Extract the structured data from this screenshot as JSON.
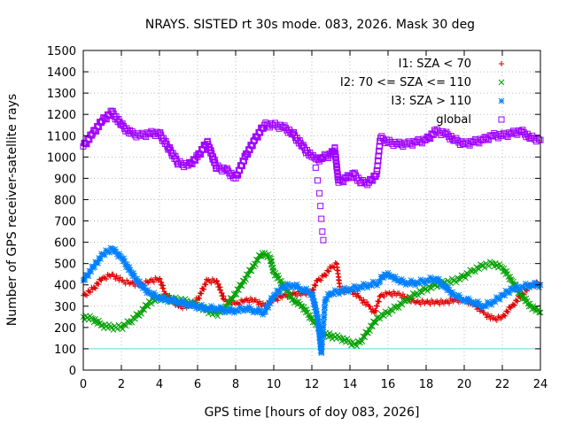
{
  "chart_data": {
    "type": "scatter",
    "title": "NRAYS. SISTED rt 30s mode. 083, 2026. Mask 30 deg",
    "xlabel": "GPS time [hours of doy 083, 2026]",
    "ylabel": "Number of GPS receiver-satellite rays",
    "xlim": [
      0,
      24
    ],
    "ylim": [
      0,
      1500
    ],
    "x_ticks": [
      "0",
      "2",
      "4",
      "6",
      "8",
      "10",
      "12",
      "14",
      "16",
      "18",
      "20",
      "22",
      "24"
    ],
    "y_ticks": [
      "0",
      "100",
      "200",
      "300",
      "400",
      "500",
      "600",
      "700",
      "800",
      "900",
      "1000",
      "1100",
      "1200",
      "1300",
      "1400",
      "1500"
    ],
    "reference_line": {
      "y": 100,
      "color": "#66d9e0"
    },
    "legend_position": "top-right",
    "series": [
      {
        "name": "I1: SZA < 70",
        "marker": "+",
        "color": "#e00000",
        "points": [
          [
            0,
            350
          ],
          [
            0.5,
            380
          ],
          [
            1,
            430
          ],
          [
            1.5,
            450
          ],
          [
            2,
            420
          ],
          [
            2.5,
            410
          ],
          [
            3,
            400
          ],
          [
            3.5,
            420
          ],
          [
            4,
            430
          ],
          [
            4.3,
            360
          ],
          [
            4.7,
            330
          ],
          [
            5,
            300
          ],
          [
            5.5,
            300
          ],
          [
            6,
            330
          ],
          [
            6.5,
            420
          ],
          [
            7,
            420
          ],
          [
            7.4,
            330
          ],
          [
            8,
            310
          ],
          [
            8.5,
            330
          ],
          [
            9,
            330
          ],
          [
            9.5,
            300
          ],
          [
            10,
            330
          ],
          [
            10.5,
            350
          ],
          [
            11,
            360
          ],
          [
            11.5,
            360
          ],
          [
            12,
            370
          ],
          [
            12.3,
            420
          ],
          [
            12.6,
            440
          ],
          [
            13,
            480
          ],
          [
            13.3,
            500
          ],
          [
            13.5,
            370
          ],
          [
            14,
            380
          ],
          [
            14.5,
            340
          ],
          [
            15,
            300
          ],
          [
            15.3,
            270
          ],
          [
            15.6,
            350
          ],
          [
            16,
            360
          ],
          [
            16.5,
            360
          ],
          [
            17,
            340
          ],
          [
            17.5,
            320
          ],
          [
            18,
            320
          ],
          [
            18.5,
            320
          ],
          [
            19,
            320
          ],
          [
            19.5,
            330
          ],
          [
            20,
            330
          ],
          [
            20.5,
            310
          ],
          [
            21,
            270
          ],
          [
            21.5,
            240
          ],
          [
            22,
            250
          ],
          [
            22.5,
            300
          ],
          [
            23,
            350
          ],
          [
            23.5,
            400
          ],
          [
            24,
            410
          ]
        ]
      },
      {
        "name": "I2: 70 <= SZA <= 110",
        "marker": "x",
        "color": "#00a000",
        "points": [
          [
            0,
            250
          ],
          [
            0.5,
            240
          ],
          [
            1,
            210
          ],
          [
            1.5,
            200
          ],
          [
            2,
            200
          ],
          [
            2.5,
            230
          ],
          [
            3,
            270
          ],
          [
            3.5,
            320
          ],
          [
            4,
            340
          ],
          [
            4.5,
            330
          ],
          [
            5,
            330
          ],
          [
            5.5,
            320
          ],
          [
            6,
            300
          ],
          [
            6.5,
            280
          ],
          [
            7,
            260
          ],
          [
            7.5,
            300
          ],
          [
            8,
            360
          ],
          [
            8.5,
            430
          ],
          [
            9,
            500
          ],
          [
            9.4,
            550
          ],
          [
            9.8,
            530
          ],
          [
            10,
            460
          ],
          [
            10.5,
            400
          ],
          [
            11,
            330
          ],
          [
            11.5,
            300
          ],
          [
            12,
            240
          ],
          [
            12.3,
            210
          ],
          [
            12.6,
            170
          ],
          [
            13,
            160
          ],
          [
            13.5,
            150
          ],
          [
            14,
            130
          ],
          [
            14.3,
            120
          ],
          [
            14.6,
            140
          ],
          [
            15,
            190
          ],
          [
            15.5,
            250
          ],
          [
            16,
            270
          ],
          [
            16.5,
            300
          ],
          [
            17,
            330
          ],
          [
            17.5,
            360
          ],
          [
            18,
            380
          ],
          [
            18.5,
            400
          ],
          [
            19,
            410
          ],
          [
            19.5,
            420
          ],
          [
            20,
            440
          ],
          [
            20.5,
            470
          ],
          [
            21,
            490
          ],
          [
            21.5,
            500
          ],
          [
            22,
            480
          ],
          [
            22.5,
            420
          ],
          [
            23,
            350
          ],
          [
            23.5,
            300
          ],
          [
            24,
            270
          ]
        ]
      },
      {
        "name": "I3: SZA > 110",
        "marker": "*",
        "color": "#0080ff",
        "points": [
          [
            0,
            420
          ],
          [
            0.5,
            480
          ],
          [
            1,
            540
          ],
          [
            1.5,
            570
          ],
          [
            2,
            530
          ],
          [
            2.5,
            460
          ],
          [
            3,
            400
          ],
          [
            3.5,
            360
          ],
          [
            4,
            340
          ],
          [
            4.5,
            330
          ],
          [
            5,
            320
          ],
          [
            5.5,
            310
          ],
          [
            6,
            300
          ],
          [
            6.5,
            290
          ],
          [
            7,
            290
          ],
          [
            7.5,
            280
          ],
          [
            8,
            280
          ],
          [
            8.5,
            290
          ],
          [
            9,
            280
          ],
          [
            9.5,
            270
          ],
          [
            10,
            350
          ],
          [
            10.5,
            390
          ],
          [
            11,
            400
          ],
          [
            11.5,
            380
          ],
          [
            12,
            360
          ],
          [
            12.3,
            250
          ],
          [
            12.5,
            80
          ],
          [
            12.7,
            330
          ],
          [
            13,
            360
          ],
          [
            13.5,
            370
          ],
          [
            14,
            380
          ],
          [
            14.5,
            390
          ],
          [
            15,
            400
          ],
          [
            15.5,
            410
          ],
          [
            15.8,
            450
          ],
          [
            16.2,
            440
          ],
          [
            16.5,
            420
          ],
          [
            17,
            410
          ],
          [
            17.5,
            410
          ],
          [
            18,
            420
          ],
          [
            18.5,
            430
          ],
          [
            19,
            390
          ],
          [
            19.5,
            350
          ],
          [
            20,
            330
          ],
          [
            20.5,
            320
          ],
          [
            21,
            300
          ],
          [
            21.5,
            320
          ],
          [
            22,
            350
          ],
          [
            22.5,
            380
          ],
          [
            23,
            390
          ],
          [
            23.5,
            400
          ],
          [
            24,
            400
          ]
        ]
      },
      {
        "name": "global",
        "marker": "square",
        "color": "#a000ff",
        "points": [
          [
            0,
            1050
          ],
          [
            0.5,
            1110
          ],
          [
            1,
            1170
          ],
          [
            1.5,
            1210
          ],
          [
            2,
            1150
          ],
          [
            2.5,
            1110
          ],
          [
            3,
            1100
          ],
          [
            3.5,
            1110
          ],
          [
            4,
            1110
          ],
          [
            4.5,
            1040
          ],
          [
            5,
            970
          ],
          [
            5.5,
            960
          ],
          [
            6,
            1000
          ],
          [
            6.5,
            1070
          ],
          [
            7,
            950
          ],
          [
            7.5,
            940
          ],
          [
            8,
            900
          ],
          [
            8.5,
            1000
          ],
          [
            9,
            1080
          ],
          [
            9.5,
            1150
          ],
          [
            10,
            1150
          ],
          [
            10.5,
            1140
          ],
          [
            11,
            1110
          ],
          [
            11.5,
            1050
          ],
          [
            12,
            1000
          ],
          [
            12.2,
            990
          ],
          [
            12.4,
            980
          ],
          [
            12.6,
            1000
          ],
          [
            13,
            1010
          ],
          [
            13.2,
            1040
          ],
          [
            13.4,
            880
          ],
          [
            13.8,
            900
          ],
          [
            14.2,
            920
          ],
          [
            14.6,
            880
          ],
          [
            15,
            880
          ],
          [
            15.4,
            920
          ],
          [
            15.6,
            1090
          ],
          [
            16,
            1070
          ],
          [
            16.5,
            1060
          ],
          [
            17,
            1060
          ],
          [
            17.5,
            1070
          ],
          [
            18,
            1080
          ],
          [
            18.5,
            1120
          ],
          [
            19,
            1110
          ],
          [
            19.5,
            1080
          ],
          [
            20,
            1060
          ],
          [
            20.5,
            1070
          ],
          [
            21,
            1080
          ],
          [
            21.5,
            1100
          ],
          [
            22,
            1100
          ],
          [
            22.5,
            1110
          ],
          [
            23,
            1120
          ],
          [
            23.5,
            1090
          ],
          [
            24,
            1080
          ]
        ]
      },
      {
        "name": "global-dip",
        "marker": "square",
        "color": "#a000ff",
        "legend": false,
        "points": [
          [
            12.2,
            950
          ],
          [
            12.3,
            890
          ],
          [
            12.4,
            830
          ],
          [
            12.45,
            770
          ],
          [
            12.5,
            710
          ],
          [
            12.55,
            650
          ],
          [
            12.6,
            610
          ]
        ]
      }
    ]
  }
}
